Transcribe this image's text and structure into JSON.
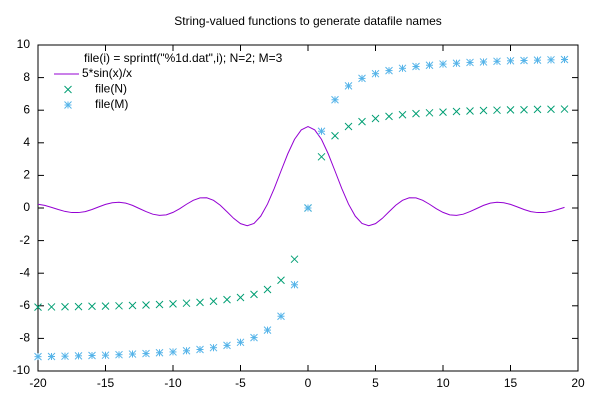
{
  "chart_data": {
    "type": "line",
    "title": "String-valued functions to generate datafile names",
    "legend_title": "file(i) = sprintf(\"%1d.dat\",i); N=2; M=3",
    "legend": "top left",
    "xlim": [
      -20,
      20
    ],
    "xticks": [
      -20,
      -15,
      -10,
      -5,
      0,
      5,
      10,
      15,
      20
    ],
    "ylim": [
      -10,
      10
    ],
    "yticks": [
      -10,
      -8,
      -6,
      -4,
      -2,
      0,
      2,
      4,
      6,
      8,
      10
    ],
    "grid": false,
    "series": [
      {
        "name": "5*sin(x)/x",
        "color": "#9400d3",
        "style": "line",
        "x": [
          -20,
          -19.5,
          -19,
          -18.5,
          -18,
          -17.5,
          -17,
          -16.5,
          -16,
          -15.5,
          -15,
          -14.5,
          -14,
          -13.5,
          -13,
          -12.5,
          -12,
          -11.5,
          -11,
          -10.5,
          -10,
          -9.5,
          -9,
          -8.5,
          -8,
          -7.5,
          -7,
          -6.5,
          -6,
          -5.5,
          -5,
          -4.5,
          -4,
          -3.5,
          -3,
          -2.5,
          -2,
          -1.5,
          -1,
          -0.5,
          0,
          0.5,
          1,
          1.5,
          2,
          2.5,
          3,
          3.5,
          4,
          4.5,
          5,
          5.5,
          6,
          6.5,
          7,
          7.5,
          8,
          8.5,
          9,
          9.5,
          10,
          10.5,
          11,
          11.5,
          12,
          12.5,
          13,
          13.5,
          14,
          14.5,
          15,
          15.5,
          16,
          16.5,
          17,
          17.5,
          18,
          18.5,
          19
        ],
        "values": [
          0.23,
          0.16,
          0.04,
          -0.09,
          -0.21,
          -0.28,
          -0.28,
          -0.22,
          -0.09,
          0.07,
          0.22,
          0.32,
          0.35,
          0.3,
          0.16,
          -0.03,
          -0.22,
          -0.38,
          -0.45,
          -0.42,
          -0.27,
          -0.04,
          0.23,
          0.47,
          0.62,
          0.63,
          0.47,
          0.17,
          -0.23,
          -0.64,
          -0.96,
          -1.09,
          -0.95,
          -0.5,
          0.24,
          1.2,
          2.27,
          3.32,
          4.21,
          4.79,
          5,
          4.79,
          4.21,
          3.32,
          2.27,
          1.2,
          0.24,
          -0.5,
          -0.95,
          -1.09,
          -0.96,
          -0.64,
          -0.23,
          0.17,
          0.47,
          0.63,
          0.62,
          0.47,
          0.23,
          -0.04,
          -0.27,
          -0.42,
          -0.45,
          -0.38,
          -0.22,
          -0.03,
          0.16,
          0.3,
          0.35,
          0.32,
          0.22,
          0.07,
          -0.09,
          -0.22,
          -0.28,
          -0.28,
          -0.21,
          -0.09,
          0.04
        ]
      },
      {
        "name": "file(N)",
        "color": "#009e73",
        "style": "points",
        "marker": "x",
        "x": [
          -20,
          -19,
          -18,
          -17,
          -16,
          -15,
          -14,
          -13,
          -12,
          -11,
          -10,
          -9,
          -8,
          -7,
          -6,
          -5,
          -4,
          -3,
          -2,
          -1,
          0,
          1,
          2,
          3,
          4,
          5,
          6,
          7,
          8,
          9,
          10,
          11,
          12,
          13,
          14,
          15,
          16,
          17,
          18,
          19
        ],
        "values": [
          -6.08,
          -6.07,
          -6.06,
          -6.05,
          -6.03,
          -6.02,
          -6.0,
          -5.98,
          -5.95,
          -5.92,
          -5.88,
          -5.84,
          -5.79,
          -5.72,
          -5.62,
          -5.49,
          -5.3,
          -5.0,
          -4.43,
          -3.14,
          0,
          3.14,
          4.43,
          5.0,
          5.3,
          5.49,
          5.62,
          5.72,
          5.79,
          5.84,
          5.88,
          5.92,
          5.95,
          5.98,
          6.0,
          6.02,
          6.03,
          6.05,
          6.06,
          6.07
        ]
      },
      {
        "name": "file(M)",
        "color": "#56b4e9",
        "style": "points",
        "marker": "asterisk",
        "x": [
          -20,
          -19,
          -18,
          -17,
          -16,
          -15,
          -14,
          -13,
          -12,
          -11,
          -10,
          -9,
          -8,
          -7,
          -6,
          -5,
          -4,
          -3,
          -2,
          -1,
          0,
          1,
          2,
          3,
          4,
          5,
          6,
          7,
          8,
          9,
          10,
          11,
          12,
          13,
          14,
          15,
          16,
          17,
          18,
          19
        ],
        "values": [
          -9.12,
          -9.11,
          -9.09,
          -9.07,
          -9.05,
          -9.03,
          -9.0,
          -8.96,
          -8.93,
          -8.88,
          -8.83,
          -8.76,
          -8.68,
          -8.57,
          -8.43,
          -8.24,
          -7.95,
          -7.49,
          -6.64,
          -4.71,
          0,
          4.71,
          6.64,
          7.49,
          7.95,
          8.24,
          8.43,
          8.57,
          8.68,
          8.76,
          8.83,
          8.88,
          8.93,
          8.96,
          9.0,
          9.03,
          9.05,
          9.07,
          9.09,
          9.11
        ]
      }
    ]
  }
}
